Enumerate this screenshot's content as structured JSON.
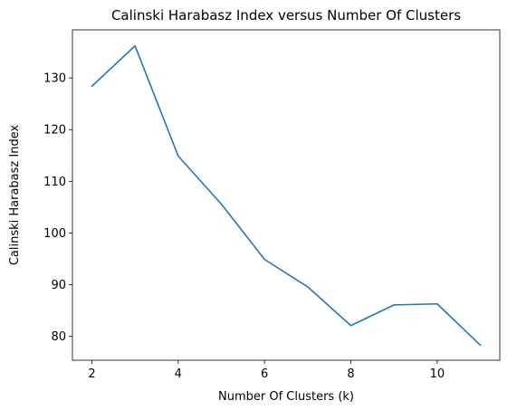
{
  "chart_data": {
    "type": "line",
    "title": "Calinski Harabasz Index versus Number Of Clusters",
    "xlabel": "Number Of Clusters (k)",
    "ylabel": "Calinski Harabasz Index",
    "xlim": [
      1.55,
      11.45
    ],
    "ylim": [
      75.4,
      139.3
    ],
    "xticks": [
      2,
      4,
      6,
      8,
      10
    ],
    "yticks": [
      80,
      90,
      100,
      110,
      120,
      130
    ],
    "grid": false,
    "series": [
      {
        "x": [
          2,
          3,
          4,
          5,
          6,
          7,
          8,
          9,
          10,
          11
        ],
        "y": [
          128.4,
          136.2,
          114.9,
          105.6,
          94.9,
          89.6,
          82.1,
          86.1,
          86.3,
          78.3
        ],
        "color": "#1f77b4"
      }
    ]
  }
}
